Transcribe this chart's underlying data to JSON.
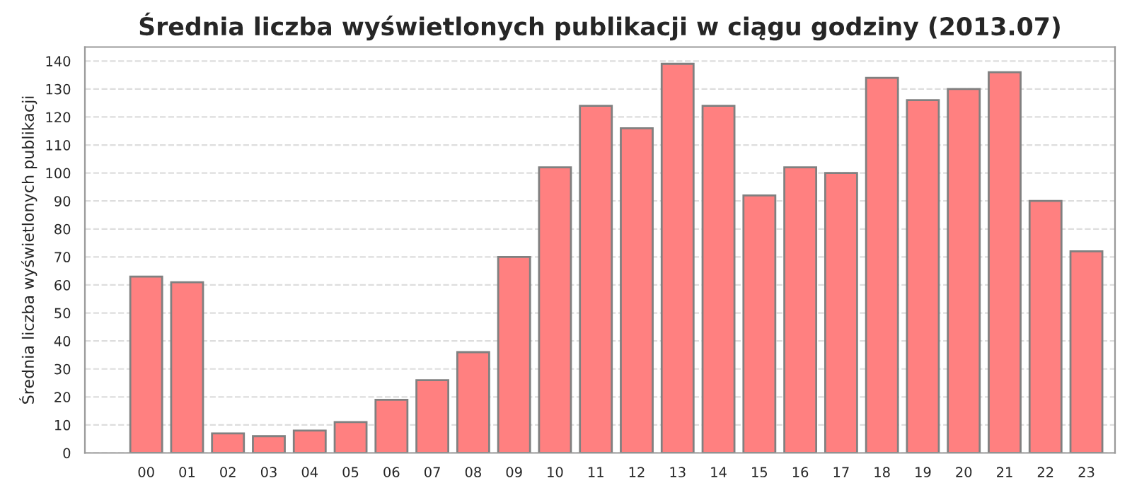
{
  "chart_data": {
    "type": "bar",
    "title": "Średnia liczba wyświetlonych publikacji w ciągu godziny (2013.07)",
    "ylabel": "Średnia liczba wyświetlonych publikacji",
    "categories": [
      "00",
      "01",
      "02",
      "03",
      "04",
      "05",
      "06",
      "07",
      "08",
      "09",
      "10",
      "11",
      "12",
      "13",
      "14",
      "15",
      "16",
      "17",
      "18",
      "19",
      "20",
      "21",
      "22",
      "23"
    ],
    "values": [
      63,
      61,
      7,
      6,
      8,
      11,
      19,
      26,
      36,
      70,
      102,
      124,
      116,
      139,
      124,
      92,
      102,
      100,
      134,
      126,
      130,
      136,
      90,
      72
    ],
    "color": "#ff8080",
    "ylim": [
      0,
      145
    ],
    "yticks": [
      0,
      10,
      20,
      30,
      40,
      50,
      60,
      70,
      80,
      90,
      100,
      110,
      120,
      130,
      140
    ],
    "grid": "y",
    "legend": false
  }
}
